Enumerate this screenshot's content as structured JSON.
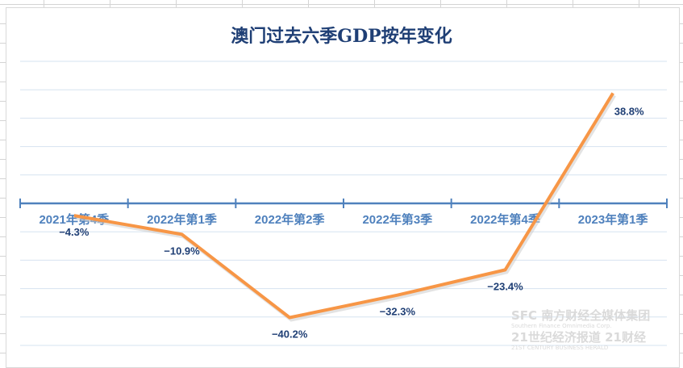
{
  "chart_data": {
    "type": "line",
    "title": "澳门过去六季GDP按年变化",
    "categories": [
      "2021年第4季",
      "2022年第1季",
      "2022年第2季",
      "2022年第3季",
      "2022年第4季",
      "2023年第1季"
    ],
    "values": [
      -4.3,
      -10.9,
      -40.2,
      -32.3,
      -23.4,
      38.8
    ],
    "data_labels": [
      "−4.3%",
      "−10.9%",
      "−40.2%",
      "−32.3%",
      "−23.4%",
      "38.8%"
    ],
    "ylim": [
      -50,
      50
    ],
    "y_gridline_step": 10,
    "grid": true,
    "y_tick_labels_shown": false,
    "line_color": "#f79646",
    "axis_color": "#4f81bd",
    "label_color": "#1f3f75",
    "category_label_color": "#4f81bd"
  },
  "watermark": {
    "line1": "SFC 南方财经全媒体集团",
    "line2": "Southern Finance Omnimedia Corp.",
    "line3": "21世纪经济报道 21财经",
    "line4": "21ST CENTURY BUSINESS HERALD"
  }
}
